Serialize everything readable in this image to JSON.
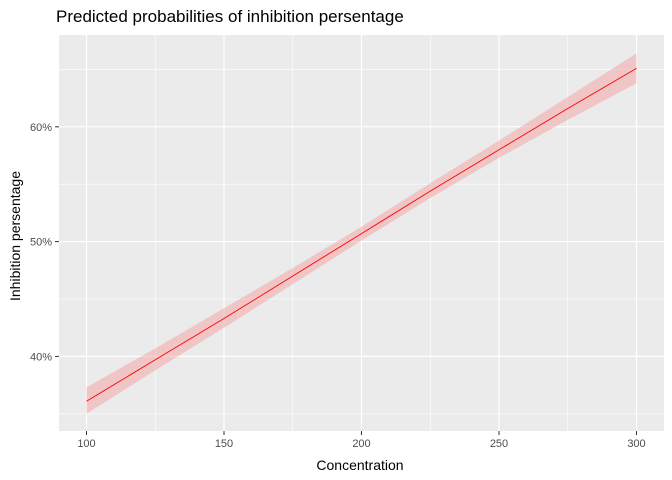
{
  "chart_data": {
    "type": "line",
    "title": "Predicted probabilities of inhibition persentage",
    "xlabel": "Concentration",
    "ylabel": "Inhibition persentage",
    "xlim": [
      90,
      310
    ],
    "ylim": [
      0.335,
      0.68
    ],
    "x_ticks": [
      100,
      150,
      200,
      250,
      300
    ],
    "x_minor_ticks": [
      125,
      175,
      225,
      275
    ],
    "y_ticks": [
      0.4,
      0.5,
      0.6
    ],
    "y_tick_labels": [
      "40%",
      "50%",
      "60%"
    ],
    "y_minor_ticks": [
      0.35,
      0.45,
      0.55,
      0.65
    ],
    "grid": true,
    "legend": "none",
    "series": [
      {
        "x": [
          100,
          125,
          150,
          175,
          200,
          225,
          250,
          275,
          300
        ],
        "y": [
          0.361,
          0.397,
          0.433,
          0.47,
          0.507,
          0.544,
          0.58,
          0.616,
          0.651
        ],
        "ci_lower": [
          0.35,
          0.388,
          0.425,
          0.463,
          0.501,
          0.538,
          0.573,
          0.606,
          0.638
        ],
        "ci_upper": [
          0.373,
          0.407,
          0.442,
          0.477,
          0.513,
          0.551,
          0.588,
          0.626,
          0.664
        ]
      }
    ],
    "colors": {
      "line": "#ff0000",
      "ribbon": "#f2a6a6",
      "panel": "#ebebeb",
      "grid": "#ffffff"
    }
  }
}
